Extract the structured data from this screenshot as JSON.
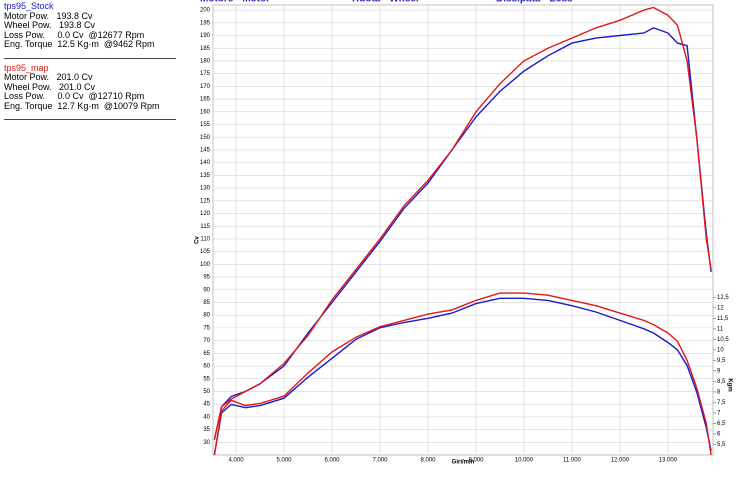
{
  "chart_data": {
    "type": "line",
    "header_labels": [
      "Motore - Motor",
      "Ruota - Wheel",
      "Dissipata - Loss"
    ],
    "ylabel": "Cv",
    "y2label": "Kgm",
    "xlabel": "Giri/min",
    "x": [
      3550,
      3700,
      3900,
      4200,
      4500,
      5000,
      5500,
      6000,
      6500,
      7000,
      7500,
      8000,
      8500,
      9000,
      9500,
      10000,
      10500,
      11000,
      11500,
      12000,
      12500,
      12700,
      13000,
      13200,
      13400,
      13600,
      13800,
      13900
    ],
    "series": [
      {
        "name": "tps95_Stock",
        "color": "#1a1acc",
        "values": [
          31,
          44,
          48,
          50,
          53,
          60,
          73,
          85,
          97,
          109,
          122,
          132,
          145,
          158,
          168,
          176,
          182,
          187,
          189,
          190,
          191,
          193,
          191,
          187,
          186,
          150,
          112,
          97
        ]
      },
      {
        "name": "tps95_map",
        "color": "#e01818",
        "values": [
          31,
          44,
          47,
          50,
          53,
          61,
          72,
          86,
          98,
          110,
          123,
          133,
          145,
          160,
          171,
          180,
          185,
          189,
          193,
          196,
          200,
          201,
          198,
          194,
          180,
          150,
          110,
          98
        ]
      },
      {
        "color": "#1a1acc",
        "axis": "y2",
        "values": [
          5,
          7,
          7.4,
          7.25,
          7.35,
          7.7,
          8.7,
          9.6,
          10.5,
          11.05,
          11.3,
          11.5,
          11.75,
          12.2,
          12.45,
          12.45,
          12.35,
          12.1,
          11.8,
          11.4,
          11.0,
          10.8,
          10.35,
          10.0,
          9.25,
          8.0,
          6.3,
          5.2
        ]
      },
      {
        "color": "#e01818",
        "axis": "y2",
        "values": [
          5,
          7.1,
          7.6,
          7.35,
          7.45,
          7.8,
          8.9,
          9.9,
          10.6,
          11.1,
          11.4,
          11.7,
          11.9,
          12.35,
          12.7,
          12.7,
          12.6,
          12.35,
          12.1,
          11.75,
          11.4,
          11.2,
          10.8,
          10.4,
          9.5,
          8.2,
          6.5,
          5
        ]
      }
    ],
    "xlim": [
      3520,
      13940
    ],
    "xticks": [
      {
        "value": 4000,
        "label": "4.000"
      },
      {
        "value": 5000,
        "label": "5.000"
      },
      {
        "value": 6000,
        "label": "6.000"
      },
      {
        "value": 7000,
        "label": "7.000"
      },
      {
        "value": 8000,
        "label": "8.000"
      },
      {
        "value": 9000,
        "label": "9.000"
      },
      {
        "value": 10000,
        "label": "10.000"
      },
      {
        "value": 11000,
        "label": "11.000"
      },
      {
        "value": 12000,
        "label": "12.000"
      },
      {
        "value": 13000,
        "label": "13.000"
      }
    ],
    "ylim": [
      25,
      202
    ],
    "yticks": [
      30,
      35,
      40,
      45,
      50,
      55,
      60,
      65,
      70,
      75,
      80,
      85,
      90,
      95,
      100,
      105,
      110,
      115,
      120,
      125,
      130,
      135,
      140,
      145,
      150,
      155,
      160,
      165,
      170,
      175,
      180,
      185,
      190,
      195,
      200
    ],
    "y2lim": [
      5,
      26.4
    ],
    "y2ticks": [
      {
        "value": 5.5,
        "label": "5,5"
      },
      6,
      {
        "value": 6.5,
        "label": "6,5"
      },
      7,
      {
        "value": 7.5,
        "label": "7,5"
      },
      8,
      {
        "value": 8.5,
        "label": "8,5"
      },
      9,
      {
        "value": 9.5,
        "label": "9,5"
      },
      10,
      {
        "value": 10.5,
        "label": "10,5"
      },
      11,
      {
        "value": 11.5,
        "label": "11,5"
      },
      12,
      {
        "value": 12.5,
        "label": "12,5"
      }
    ],
    "grid": true
  },
  "stats": [
    [
      "Motor Pow.   193.8 Cv",
      "Wheel Pow.   193.8 Cv",
      "Loss Pow.     0.0 Cv  @12677 Rpm",
      "Eng. Torque  12.5 Kg·m  @9462 Rpm"
    ],
    [
      "Motor Pow.   201.0 Cv",
      "Wheel Pow.   201.0 Cv",
      "Loss Pow.     0.0 Cv  @12710 Rpm",
      "Eng. Torque  12.7 Kg·m  @10079 Rpm"
    ]
  ]
}
